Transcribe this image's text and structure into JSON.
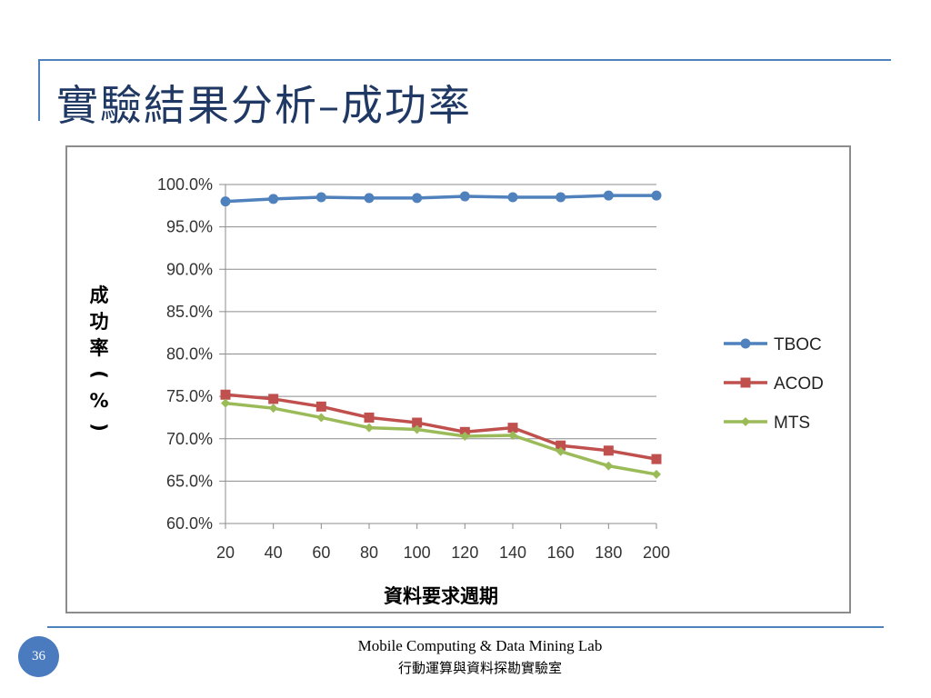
{
  "slide": {
    "title": "實驗結果分析–成功率",
    "page_number": "36",
    "footer_lab": "Mobile Computing & Data Mining Lab",
    "footer_lab_zh": "行動運算與資料探勘實驗室"
  },
  "chart_data": {
    "type": "line",
    "title": "",
    "xlabel": "資料要求週期",
    "ylabel": "成功率(%)",
    "x": [
      20,
      40,
      60,
      80,
      100,
      120,
      140,
      160,
      180,
      200
    ],
    "x_tick_labels": [
      "20",
      "40",
      "60",
      "80",
      "100",
      "120",
      "140",
      "160",
      "180",
      "200"
    ],
    "ylim": [
      60,
      100
    ],
    "y_ticks": [
      60,
      65,
      70,
      75,
      80,
      85,
      90,
      95,
      100
    ],
    "y_tick_labels": [
      "60.0%",
      "65.0%",
      "70.0%",
      "75.0%",
      "80.0%",
      "85.0%",
      "90.0%",
      "95.0%",
      "100.0%"
    ],
    "grid": true,
    "legend_position": "right",
    "series": [
      {
        "name": "TBOC",
        "color": "#4f81bd",
        "marker": "circle",
        "values": [
          98.0,
          98.3,
          98.5,
          98.4,
          98.4,
          98.6,
          98.5,
          98.5,
          98.7,
          98.7
        ]
      },
      {
        "name": "ACOD",
        "color": "#c0504d",
        "marker": "square",
        "values": [
          75.2,
          74.7,
          73.8,
          72.5,
          71.9,
          70.8,
          71.3,
          69.2,
          68.6,
          67.6
        ]
      },
      {
        "name": "MTS",
        "color": "#9bbb59",
        "marker": "diamond",
        "values": [
          74.2,
          73.6,
          72.5,
          71.3,
          71.1,
          70.3,
          70.4,
          68.5,
          66.8,
          65.8
        ]
      }
    ]
  }
}
